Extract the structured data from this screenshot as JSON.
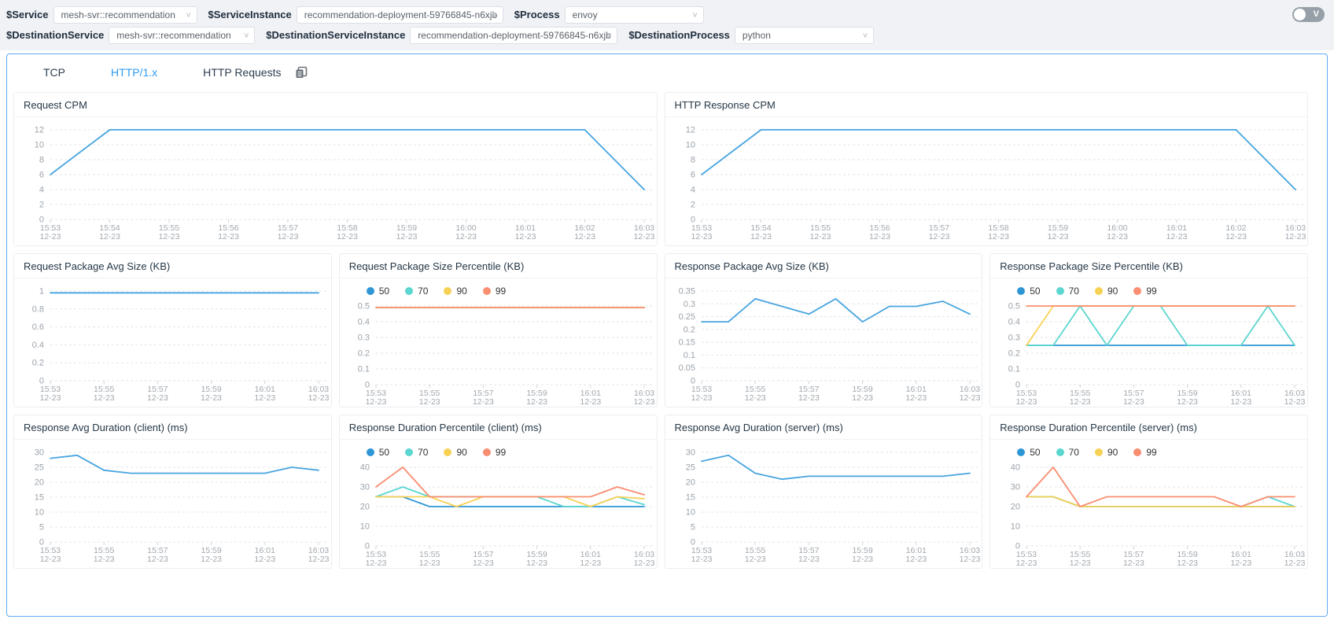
{
  "topbar": {
    "filters": [
      [
        {
          "label": "$Service",
          "value": "mesh-svr::recommendation"
        },
        {
          "label": "$ServiceInstance",
          "value": "recommendation-deployment-59766845-n6xjb"
        },
        {
          "label": "$Process",
          "value": "envoy"
        }
      ],
      [
        {
          "label": "$DestinationService",
          "value": "mesh-svr::recommendation"
        },
        {
          "label": "$DestinationServiceInstance",
          "value": "recommendation-deployment-59766845-n6xjb"
        },
        {
          "label": "$DestinationProcess",
          "value": "python"
        }
      ]
    ],
    "toggle_label": "V"
  },
  "tabs": [
    {
      "label": "TCP",
      "active": false
    },
    {
      "label": "HTTP/1.x",
      "active": true
    },
    {
      "label": "HTTP Requests",
      "active": false
    }
  ],
  "icons": {
    "chevron_down": "∨"
  },
  "colors": {
    "accent": "#2d9bf0",
    "board_border": "#5fa9f2",
    "single_line": "#47a4e0",
    "p50": "#2e96d5",
    "p70": "#5cd6d0",
    "p90": "#f7d154",
    "p99": "#f98e71"
  },
  "chart_data": [
    {
      "type": "line",
      "title": "Request CPM",
      "span": 2,
      "legend": false,
      "x": [
        "15:53",
        "15:54",
        "15:55",
        "15:56",
        "15:57",
        "15:58",
        "15:59",
        "16:00",
        "16:01",
        "16:02",
        "16:03"
      ],
      "x_date": "12-23",
      "label_every": 1,
      "yticks": [
        0,
        2,
        4,
        6,
        8,
        10,
        12
      ],
      "series": [
        {
          "name": "value",
          "color": "#47a4e0",
          "values": [
            6,
            12,
            12,
            12,
            12,
            12,
            12,
            12,
            12,
            12,
            4
          ]
        }
      ]
    },
    {
      "type": "line",
      "title": "HTTP Response CPM",
      "span": 2,
      "legend": false,
      "x": [
        "15:53",
        "15:54",
        "15:55",
        "15:56",
        "15:57",
        "15:58",
        "15:59",
        "16:00",
        "16:01",
        "16:02",
        "16:03"
      ],
      "x_date": "12-23",
      "label_every": 1,
      "yticks": [
        0,
        2,
        4,
        6,
        8,
        10,
        12
      ],
      "series": [
        {
          "name": "value",
          "color": "#47a4e0",
          "values": [
            6,
            12,
            12,
            12,
            12,
            12,
            12,
            12,
            12,
            12,
            4
          ]
        }
      ]
    },
    {
      "type": "line",
      "title": "Request Package Avg Size (KB)",
      "span": 1,
      "legend": false,
      "x": [
        "15:53",
        "15:54",
        "15:55",
        "15:56",
        "15:57",
        "15:58",
        "15:59",
        "16:00",
        "16:01",
        "16:02",
        "16:03"
      ],
      "x_date": "12-23",
      "label_every": 2,
      "yticks": [
        0,
        0.2,
        0.4,
        0.6,
        0.8,
        1
      ],
      "series": [
        {
          "name": "value",
          "color": "#47a4e0",
          "values": [
            0.98,
            0.98,
            0.98,
            0.98,
            0.98,
            0.98,
            0.98,
            0.98,
            0.98,
            0.98,
            0.98
          ]
        }
      ]
    },
    {
      "type": "line",
      "title": "Request Package Size Percentile (KB)",
      "span": 1,
      "legend": true,
      "x": [
        "15:53",
        "15:54",
        "15:55",
        "15:56",
        "15:57",
        "15:58",
        "15:59",
        "16:00",
        "16:01",
        "16:02",
        "16:03"
      ],
      "x_date": "12-23",
      "label_every": 2,
      "yticks": [
        0,
        0.1,
        0.2,
        0.3,
        0.4,
        0.5
      ],
      "series": [
        {
          "name": "50",
          "color": "#2e96d5",
          "values": [
            0.49,
            0.49,
            0.49,
            0.49,
            0.49,
            0.49,
            0.49,
            0.49,
            0.49,
            0.49,
            0.49
          ]
        },
        {
          "name": "70",
          "color": "#5cd6d0",
          "values": [
            0.49,
            0.49,
            0.49,
            0.49,
            0.49,
            0.49,
            0.49,
            0.49,
            0.49,
            0.49,
            0.49
          ]
        },
        {
          "name": "90",
          "color": "#f7d154",
          "values": [
            0.49,
            0.49,
            0.49,
            0.49,
            0.49,
            0.49,
            0.49,
            0.49,
            0.49,
            0.49,
            0.49
          ]
        },
        {
          "name": "99",
          "color": "#f98e71",
          "values": [
            0.49,
            0.49,
            0.49,
            0.49,
            0.49,
            0.49,
            0.49,
            0.49,
            0.49,
            0.49,
            0.49
          ]
        }
      ]
    },
    {
      "type": "line",
      "title": "Response Package Avg Size (KB)",
      "span": 1,
      "legend": false,
      "x": [
        "15:53",
        "15:54",
        "15:55",
        "15:56",
        "15:57",
        "15:58",
        "15:59",
        "16:00",
        "16:01",
        "16:02",
        "16:03"
      ],
      "x_date": "12-23",
      "label_every": 2,
      "yticks": [
        0,
        0.05,
        0.1,
        0.15,
        0.2,
        0.25,
        0.3,
        0.35
      ],
      "series": [
        {
          "name": "value",
          "color": "#47a4e0",
          "values": [
            0.23,
            0.23,
            0.32,
            0.29,
            0.26,
            0.32,
            0.23,
            0.29,
            0.29,
            0.31,
            0.26
          ]
        }
      ]
    },
    {
      "type": "line",
      "title": "Response Package Size Percentile (KB)",
      "span": 1,
      "legend": true,
      "x": [
        "15:53",
        "15:54",
        "15:55",
        "15:56",
        "15:57",
        "15:58",
        "15:59",
        "16:00",
        "16:01",
        "16:02",
        "16:03"
      ],
      "x_date": "12-23",
      "label_every": 2,
      "yticks": [
        0,
        0.1,
        0.2,
        0.3,
        0.4,
        0.5
      ],
      "series": [
        {
          "name": "50",
          "color": "#2e96d5",
          "values": [
            0.25,
            0.25,
            0.25,
            0.25,
            0.25,
            0.25,
            0.25,
            0.25,
            0.25,
            0.25,
            0.25
          ]
        },
        {
          "name": "70",
          "color": "#5cd6d0",
          "values": [
            0.25,
            0.25,
            0.5,
            0.25,
            0.5,
            0.5,
            0.25,
            0.25,
            0.25,
            0.5,
            0.25
          ]
        },
        {
          "name": "90",
          "color": "#f7d154",
          "values": [
            0.25,
            0.5,
            0.5,
            0.5,
            0.5,
            0.5,
            0.5,
            0.5,
            0.5,
            0.5,
            0.5
          ]
        },
        {
          "name": "99",
          "color": "#f98e71",
          "values": [
            0.5,
            0.5,
            0.5,
            0.5,
            0.5,
            0.5,
            0.5,
            0.5,
            0.5,
            0.5,
            0.5
          ]
        }
      ]
    },
    {
      "type": "line",
      "title": "Response Avg Duration (client) (ms)",
      "span": 1,
      "legend": false,
      "x": [
        "15:53",
        "15:54",
        "15:55",
        "15:56",
        "15:57",
        "15:58",
        "15:59",
        "16:00",
        "16:01",
        "16:02",
        "16:03"
      ],
      "x_date": "12-23",
      "label_every": 2,
      "yticks": [
        0,
        5,
        10,
        15,
        20,
        25,
        30
      ],
      "series": [
        {
          "name": "value",
          "color": "#47a4e0",
          "values": [
            28,
            29,
            24,
            23,
            23,
            23,
            23,
            23,
            23,
            25,
            24
          ]
        }
      ]
    },
    {
      "type": "line",
      "title": "Response Duration Percentile (client) (ms)",
      "span": 1,
      "legend": true,
      "x": [
        "15:53",
        "15:54",
        "15:55",
        "15:56",
        "15:57",
        "15:58",
        "15:59",
        "16:00",
        "16:01",
        "16:02",
        "16:03"
      ],
      "x_date": "12-23",
      "label_every": 2,
      "yticks": [
        0,
        10,
        20,
        30,
        40
      ],
      "series": [
        {
          "name": "50",
          "color": "#2e96d5",
          "values": [
            25,
            25,
            20,
            20,
            20,
            20,
            20,
            20,
            20,
            20,
            20
          ]
        },
        {
          "name": "70",
          "color": "#5cd6d0",
          "values": [
            25,
            30,
            25,
            25,
            25,
            25,
            25,
            20,
            20,
            25,
            21
          ]
        },
        {
          "name": "90",
          "color": "#f7d154",
          "values": [
            25,
            25,
            25,
            20,
            25,
            25,
            25,
            25,
            20,
            25,
            24
          ]
        },
        {
          "name": "99",
          "color": "#f98e71",
          "values": [
            30,
            40,
            25,
            25,
            25,
            25,
            25,
            25,
            25,
            30,
            26
          ]
        }
      ]
    },
    {
      "type": "line",
      "title": "Response Avg Duration (server) (ms)",
      "span": 1,
      "legend": false,
      "x": [
        "15:53",
        "15:54",
        "15:55",
        "15:56",
        "15:57",
        "15:58",
        "15:59",
        "16:00",
        "16:01",
        "16:02",
        "16:03"
      ],
      "x_date": "12-23",
      "label_every": 2,
      "yticks": [
        0,
        5,
        10,
        15,
        20,
        25,
        30
      ],
      "series": [
        {
          "name": "value",
          "color": "#47a4e0",
          "values": [
            27,
            29,
            23,
            21,
            22,
            22,
            22,
            22,
            22,
            22,
            23
          ]
        }
      ]
    },
    {
      "type": "line",
      "title": "Response Duration Percentile (server) (ms)",
      "span": 1,
      "legend": true,
      "x": [
        "15:53",
        "15:54",
        "15:55",
        "15:56",
        "15:57",
        "15:58",
        "15:59",
        "16:00",
        "16:01",
        "16:02",
        "16:03"
      ],
      "x_date": "12-23",
      "label_every": 2,
      "yticks": [
        0,
        10,
        20,
        30,
        40
      ],
      "series": [
        {
          "name": "50",
          "color": "#2e96d5",
          "values": [
            25,
            25,
            20,
            20,
            20,
            20,
            20,
            20,
            20,
            20,
            20
          ]
        },
        {
          "name": "70",
          "color": "#5cd6d0",
          "values": [
            25,
            25,
            20,
            20,
            20,
            20,
            20,
            20,
            20,
            25,
            20
          ]
        },
        {
          "name": "90",
          "color": "#f7d154",
          "values": [
            25,
            25,
            20,
            20,
            20,
            20,
            20,
            20,
            20,
            20,
            20
          ]
        },
        {
          "name": "99",
          "color": "#f98e71",
          "values": [
            25,
            40,
            20,
            25,
            25,
            25,
            25,
            25,
            20,
            25,
            25
          ]
        }
      ]
    }
  ]
}
